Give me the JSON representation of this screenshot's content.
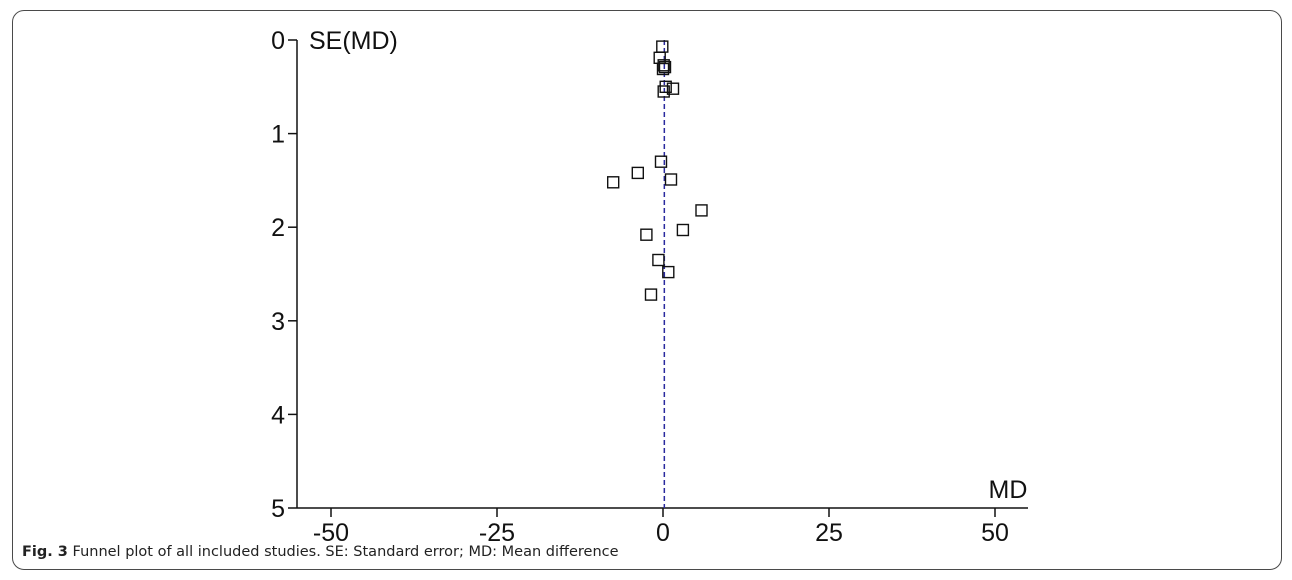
{
  "chart_data": {
    "type": "scatter",
    "title": "",
    "xlabel": "MD",
    "ylabel": "SE(MD)",
    "xlim": [
      -55,
      55
    ],
    "ylim": [
      0,
      5
    ],
    "y_inverted": true,
    "xticks": [
      -50,
      -25,
      0,
      25,
      50
    ],
    "yticks": [
      0,
      1,
      2,
      3,
      4,
      5
    ],
    "grid": false,
    "reference_line": {
      "x": 0.2,
      "style": "dashed",
      "color": "#2a2a9e"
    },
    "points": [
      {
        "x": -0.1,
        "y": 0.07
      },
      {
        "x": -0.5,
        "y": 0.19
      },
      {
        "x": 0.1,
        "y": 0.27
      },
      {
        "x": 0.3,
        "y": 0.29
      },
      {
        "x": 0.0,
        "y": 0.31
      },
      {
        "x": 0.4,
        "y": 0.5
      },
      {
        "x": 1.5,
        "y": 0.52
      },
      {
        "x": 0.1,
        "y": 0.55
      },
      {
        "x": -0.3,
        "y": 1.3
      },
      {
        "x": -3.8,
        "y": 1.42
      },
      {
        "x": 1.2,
        "y": 1.49
      },
      {
        "x": -7.5,
        "y": 1.52
      },
      {
        "x": 5.8,
        "y": 1.82
      },
      {
        "x": 3.0,
        "y": 2.03
      },
      {
        "x": -2.5,
        "y": 2.08
      },
      {
        "x": -0.7,
        "y": 2.35
      },
      {
        "x": 0.8,
        "y": 2.48
      },
      {
        "x": -1.8,
        "y": 2.72
      }
    ]
  },
  "caption": {
    "label": "Fig. 3",
    "text": " Funnel plot of all included studies. SE: Standard error; MD: Mean difference"
  }
}
